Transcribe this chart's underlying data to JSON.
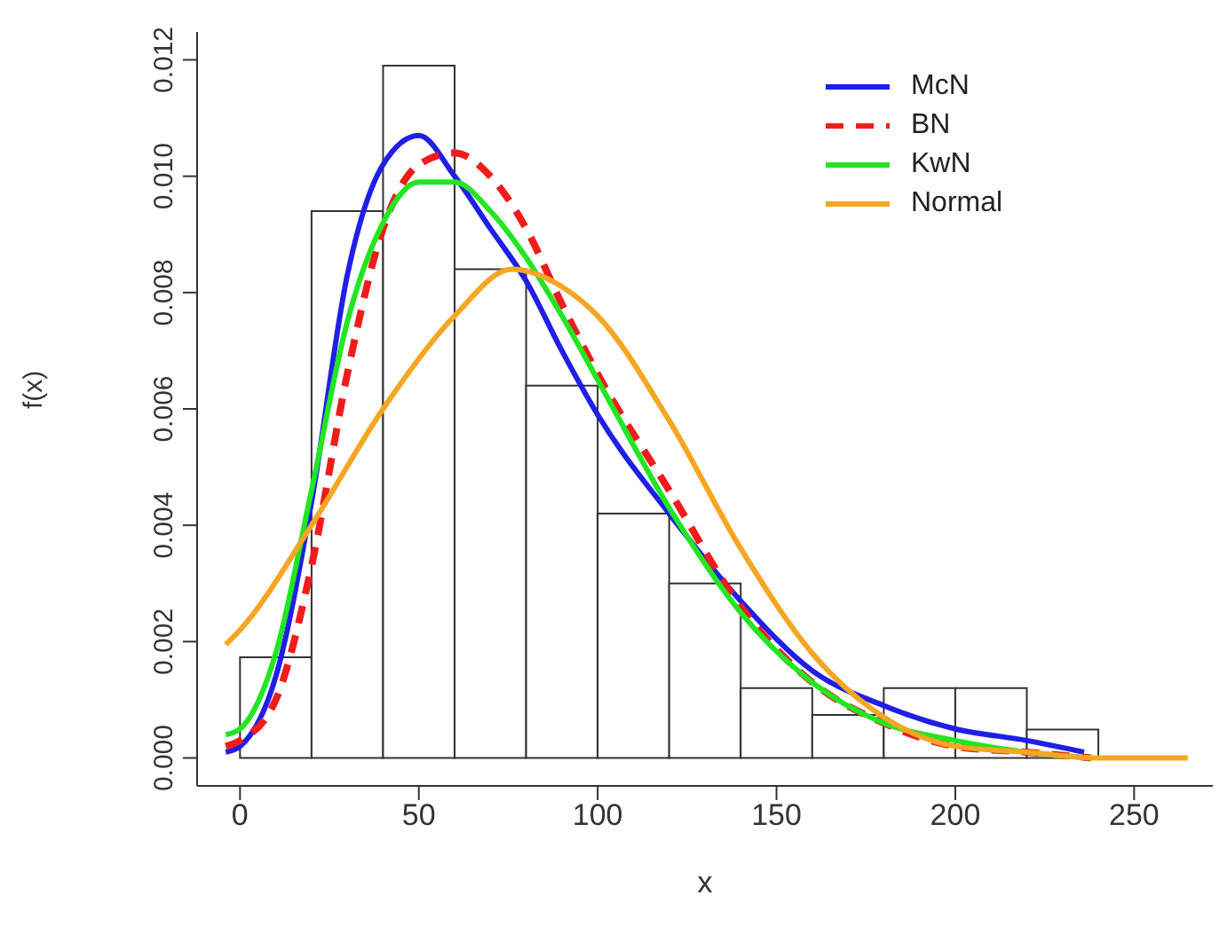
{
  "chart_data": {
    "type": "histogram",
    "xlabel": "x",
    "ylabel": "f(x)",
    "bins": [
      0,
      20,
      40,
      60,
      80,
      100,
      120,
      140,
      160,
      180,
      200,
      220,
      240
    ],
    "values": [
      0.00173,
      0.0094,
      0.0119,
      0.0084,
      0.0064,
      0.0042,
      0.003,
      0.0012,
      0.00074,
      0.0012,
      0.0012,
      0.00049
    ],
    "color": "#ffffff",
    "xlim": [
      -12,
      272
    ],
    "xticks": [
      0,
      50,
      100,
      150,
      200,
      250
    ],
    "ylim": [
      -0.00048,
      0.01248
    ],
    "yticks": [
      {
        "value": 0,
        "label": "0.000"
      },
      {
        "value": 0.002,
        "label": "0.002"
      },
      {
        "value": 0.004,
        "label": "0.004"
      },
      {
        "value": 0.006,
        "label": "0.006"
      },
      {
        "value": 0.008,
        "label": "0.008"
      },
      {
        "value": 0.01,
        "label": "0.010"
      },
      {
        "value": 0.012,
        "label": "0.012"
      }
    ],
    "grid": false,
    "legend": "top right",
    "series": [
      {
        "name": "McN",
        "type": "line",
        "color": "#1f1fe6",
        "line_style": "solid",
        "x": [
          -4,
          0,
          10,
          20,
          30,
          40,
          50,
          60,
          70,
          80,
          90,
          100,
          120,
          140,
          160,
          180,
          200,
          220,
          236
        ],
        "values": [
          0.0001,
          0.0002,
          0.0014,
          0.0044,
          0.0083,
          0.0102,
          0.0107,
          0.01,
          0.0091,
          0.0082,
          0.007,
          0.0059,
          0.0042,
          0.0027,
          0.0015,
          0.0009,
          0.0005,
          0.0003,
          0.0001
        ]
      },
      {
        "name": "BN",
        "type": "line",
        "color": "#f01c1c",
        "line_style": "dashed",
        "x": [
          -4,
          0,
          10,
          20,
          30,
          40,
          50,
          60,
          70,
          80,
          90,
          100,
          120,
          140,
          160,
          180,
          200,
          220,
          238
        ],
        "values": [
          0.0002,
          0.0003,
          0.001,
          0.0033,
          0.0066,
          0.0091,
          0.0102,
          0.0104,
          0.01,
          0.0091,
          0.0078,
          0.0066,
          0.0046,
          0.0026,
          0.0013,
          0.0006,
          0.0002,
          0.0001,
          0
        ]
      },
      {
        "name": "KwN",
        "type": "line",
        "color": "#22e622",
        "line_style": "solid",
        "x": [
          -4,
          0,
          10,
          20,
          30,
          40,
          50,
          60,
          70,
          80,
          90,
          100,
          120,
          140,
          160,
          180,
          200,
          220,
          238
        ],
        "values": [
          0.0004,
          0.0005,
          0.0018,
          0.0046,
          0.0075,
          0.0092,
          0.0099,
          0.0099,
          0.0094,
          0.0086,
          0.0076,
          0.0065,
          0.0043,
          0.0025,
          0.0013,
          0.0006,
          0.0003,
          0.0001,
          0
        ]
      },
      {
        "name": "Normal",
        "type": "line",
        "color": "#f5a623",
        "line_style": "solid",
        "x": [
          -4,
          0,
          20,
          40,
          60,
          76,
          90,
          100,
          120,
          140,
          160,
          180,
          200,
          220,
          240,
          265
        ],
        "values": [
          0.00195,
          0.0022,
          0.004,
          0.006,
          0.0076,
          0.0084,
          0.0081,
          0.0076,
          0.0058,
          0.0036,
          0.0018,
          0.0007,
          0.0002,
          0.0001,
          0,
          0
        ]
      }
    ]
  }
}
